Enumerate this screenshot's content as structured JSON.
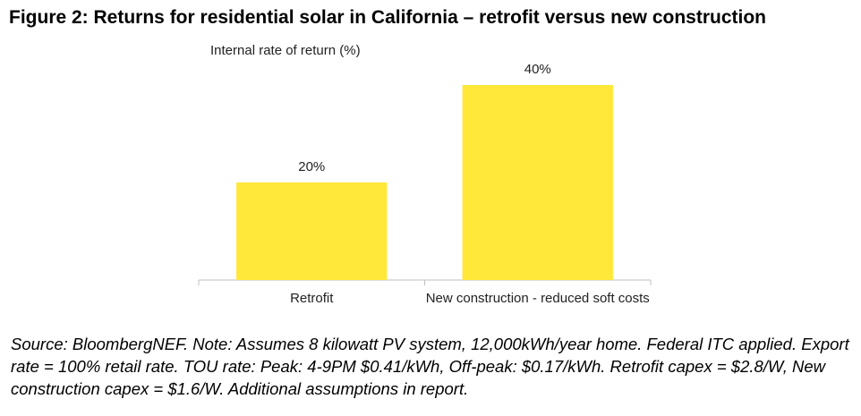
{
  "chart_data": {
    "type": "bar",
    "title": "Figure 2: Returns for residential solar in California – retrofit versus new construction",
    "y_label": "Internal rate of return (%)",
    "categories": [
      "Retrofit",
      "New construction - reduced soft costs"
    ],
    "values": [
      20,
      40
    ],
    "value_labels": [
      "20%",
      "40%"
    ],
    "color": "#ffe83a",
    "note": "Source: BloombergNEF. Note: Assumes 8 kilowatt PV system, 12,000kWh/year home. Federal ITC applied. Export rate = 100% retail rate. TOU rate: Peak: 4-9PM $0.41/kWh, Off-peak: $0.17/kWh. Retrofit capex = $2.8/W, New construction capex = $1.6/W. Additional assumptions in report."
  }
}
